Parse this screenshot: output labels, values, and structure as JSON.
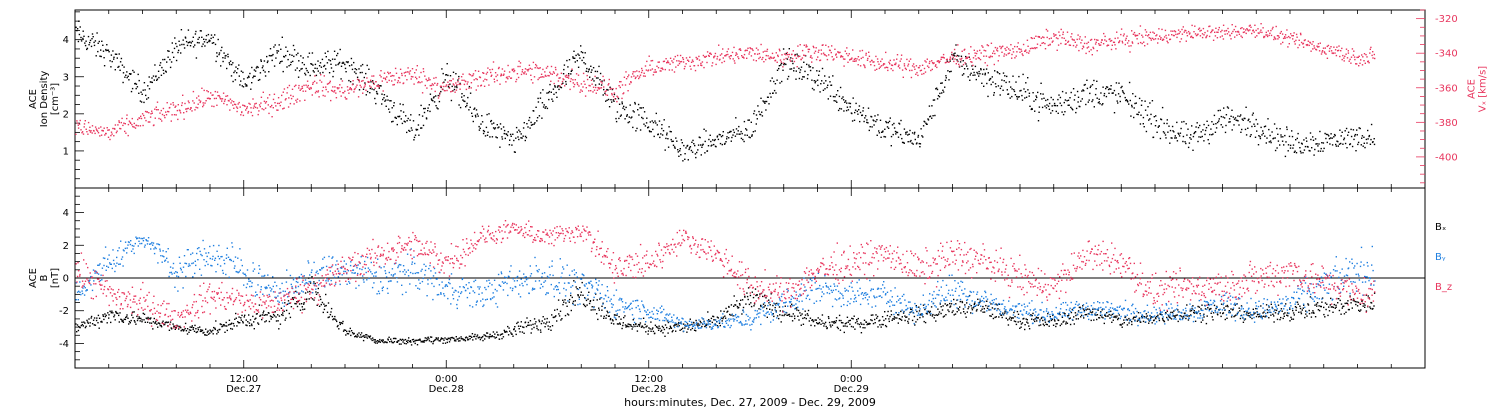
{
  "chart_data": [
    {
      "type": "scatter",
      "panel": "top",
      "ylabel": [
        "ACE",
        "Ion Density",
        "[cm⁻³]"
      ],
      "y2label": [
        "ACE",
        "Vₓ [km/s]"
      ],
      "ylim": [
        0,
        4.8
      ],
      "y2lim": [
        -418,
        -315
      ],
      "yticks": [
        1,
        2,
        3,
        4
      ],
      "y2ticks": [
        -320,
        -340,
        -360,
        -380,
        -400
      ],
      "series": [
        {
          "color": "#000000",
          "axis": "left",
          "x": [
            0,
            2,
            4,
            6,
            8,
            10,
            12,
            14,
            16,
            18,
            20,
            22,
            24,
            26,
            28,
            30,
            32,
            34,
            36,
            38,
            40,
            42,
            44,
            46,
            48,
            50,
            52,
            54,
            56,
            58,
            60,
            62,
            64,
            66,
            68,
            70,
            72,
            76
          ],
          "y": [
            4.2,
            3.6,
            2.6,
            3.8,
            4.1,
            2.8,
            3.7,
            3.3,
            3.4,
            2.6,
            1.5,
            3.0,
            1.8,
            1.2,
            2.4,
            3.6,
            2.2,
            1.8,
            1.0,
            1.3,
            1.6,
            3.4,
            3.0,
            2.2,
            1.6,
            1.3,
            3.5,
            3.0,
            2.6,
            2.2,
            2.6,
            2.5,
            1.8,
            1.3,
            1.9,
            1.7,
            1.2,
            1.4
          ],
          "spread": [
            0.35,
            0.3,
            0.3,
            0.35,
            0.35,
            0.3,
            0.35,
            0.35,
            0.35,
            0.35,
            0.35,
            0.4,
            0.4,
            0.3,
            0.4,
            0.35,
            0.4,
            0.4,
            0.3,
            0.3,
            0.35,
            0.35,
            0.4,
            0.4,
            0.35,
            0.3,
            0.35,
            0.4,
            0.4,
            0.4,
            0.4,
            0.4,
            0.4,
            0.35,
            0.4,
            0.35,
            0.35,
            0.3
          ]
        },
        {
          "color": "#e8365e",
          "axis": "right",
          "x": [
            0,
            2,
            4,
            6,
            8,
            10,
            12,
            14,
            16,
            18,
            20,
            22,
            24,
            26,
            28,
            30,
            32,
            34,
            36,
            38,
            40,
            42,
            44,
            46,
            48,
            50,
            52,
            54,
            56,
            58,
            60,
            62,
            64,
            66,
            68,
            70,
            72,
            76
          ],
          "y": [
            -382,
            -386,
            -378,
            -372,
            -365,
            -372,
            -368,
            -358,
            -362,
            -355,
            -352,
            -360,
            -354,
            -350,
            -352,
            -356,
            -362,
            -348,
            -345,
            -342,
            -340,
            -342,
            -338,
            -342,
            -346,
            -348,
            -342,
            -340,
            -338,
            -330,
            -335,
            -332,
            -330,
            -328,
            -328,
            -326,
            -332,
            -342
          ],
          "spread": [
            4,
            5,
            5,
            6,
            5,
            6,
            6,
            6,
            6,
            6,
            6,
            6,
            6,
            6,
            6,
            6,
            6,
            5,
            5,
            5,
            5,
            5,
            5,
            5,
            5,
            5,
            5,
            5,
            5,
            5,
            5,
            5,
            5,
            4,
            4,
            4,
            4,
            5
          ]
        }
      ]
    },
    {
      "type": "scatter",
      "panel": "bottom",
      "ylabel": [
        "ACE",
        "B",
        "[nT]"
      ],
      "ylim": [
        -5.5,
        5.5
      ],
      "yticks": [
        -4,
        -2,
        0,
        2,
        4
      ],
      "zero_line": true,
      "legend_position": "right",
      "series": [
        {
          "name": "Bₓ",
          "color": "#000000",
          "x": [
            0,
            2,
            4,
            6,
            8,
            10,
            12,
            14,
            16,
            18,
            20,
            22,
            24,
            26,
            28,
            30,
            32,
            34,
            36,
            38,
            40,
            42,
            44,
            46,
            48,
            50,
            52,
            54,
            56,
            58,
            60,
            62,
            64,
            66,
            68,
            70,
            72,
            76
          ],
          "y": [
            -3.0,
            -2.2,
            -2.5,
            -3.0,
            -3.2,
            -2.5,
            -2.4,
            -0.6,
            -3.2,
            -3.8,
            -3.8,
            -3.7,
            -3.6,
            -3.2,
            -2.5,
            -0.8,
            -2.6,
            -3.0,
            -3.0,
            -2.6,
            -1.2,
            -2.0,
            -2.7,
            -2.8,
            -2.4,
            -2.2,
            -1.8,
            -1.8,
            -2.6,
            -2.6,
            -2.0,
            -2.6,
            -2.4,
            -2.0,
            -2.0,
            -2.2,
            -2.0,
            -1.5
          ],
          "spread": [
            0.3,
            0.5,
            0.4,
            0.3,
            0.3,
            0.5,
            0.6,
            0.8,
            0.3,
            0.2,
            0.2,
            0.2,
            0.2,
            0.4,
            0.6,
            0.8,
            0.5,
            0.4,
            0.4,
            0.5,
            0.7,
            0.6,
            0.4,
            0.4,
            0.5,
            0.5,
            0.6,
            0.6,
            0.4,
            0.4,
            0.5,
            0.4,
            0.4,
            0.5,
            0.5,
            0.4,
            0.5,
            0.6
          ]
        },
        {
          "name": "Bᵧ",
          "color": "#1f7fe0",
          "x": [
            0,
            2,
            4,
            6,
            8,
            10,
            12,
            14,
            16,
            18,
            20,
            22,
            24,
            26,
            28,
            30,
            32,
            34,
            36,
            38,
            40,
            42,
            44,
            46,
            48,
            50,
            52,
            54,
            56,
            58,
            60,
            62,
            64,
            66,
            68,
            70,
            72,
            76
          ],
          "y": [
            -1.0,
            1.0,
            2.5,
            0.5,
            1.5,
            0.5,
            -1.0,
            0.2,
            0.5,
            0.0,
            0.5,
            -0.5,
            -1.0,
            -0.2,
            0.2,
            -0.5,
            -1.5,
            -2.0,
            -2.8,
            -2.7,
            -2.5,
            -1.5,
            -0.5,
            -1.0,
            -1.0,
            -2.0,
            -0.5,
            -1.5,
            -2.0,
            -2.2,
            -1.8,
            -2.0,
            -2.2,
            -2.0,
            -1.5,
            -2.0,
            -1.5,
            0.5
          ],
          "spread": [
            0.8,
            1.0,
            0.4,
            1.0,
            1.0,
            1.2,
            0.8,
            1.0,
            1.0,
            1.2,
            1.0,
            1.0,
            0.8,
            1.0,
            1.2,
            1.0,
            0.8,
            0.6,
            0.4,
            0.4,
            0.5,
            0.8,
            1.0,
            0.8,
            0.8,
            0.6,
            1.0,
            0.8,
            0.6,
            0.5,
            0.6,
            0.6,
            0.5,
            0.6,
            0.8,
            0.6,
            0.8,
            1.2
          ]
        },
        {
          "name": "B_z",
          "color": "#e8365e",
          "x": [
            0,
            2,
            4,
            6,
            8,
            10,
            12,
            14,
            16,
            18,
            20,
            22,
            24,
            26,
            28,
            30,
            32,
            34,
            36,
            38,
            40,
            42,
            44,
            46,
            48,
            50,
            52,
            54,
            56,
            58,
            60,
            62,
            64,
            66,
            68,
            70,
            72,
            76
          ],
          "y": [
            0.5,
            -1.0,
            -1.5,
            -2.5,
            -1.0,
            -1.5,
            -1.5,
            -0.5,
            0.5,
            1.5,
            2.0,
            1.0,
            2.5,
            3.0,
            2.5,
            3.0,
            0.5,
            1.0,
            2.5,
            1.5,
            -0.5,
            -1.0,
            0.5,
            1.0,
            1.5,
            0.5,
            1.5,
            1.0,
            0.0,
            -0.5,
            1.5,
            1.0,
            -1.0,
            -0.5,
            -0.5,
            0.0,
            0.5,
            -1.0
          ],
          "spread": [
            1.0,
            1.0,
            1.0,
            0.6,
            1.0,
            0.8,
            0.8,
            1.0,
            1.0,
            0.8,
            0.8,
            1.0,
            0.6,
            0.5,
            0.6,
            0.6,
            1.0,
            1.0,
            0.5,
            0.8,
            1.0,
            0.8,
            1.0,
            1.0,
            0.8,
            1.0,
            1.0,
            1.0,
            1.0,
            1.0,
            0.8,
            1.0,
            1.0,
            1.0,
            1.0,
            1.0,
            1.0,
            1.0
          ]
        }
      ]
    }
  ],
  "x_axis": {
    "xlabel": "hours:minutes, Dec. 27, 2009 - Dec. 29, 2009",
    "unit": "hours from 02:00 Dec. 27, 2009",
    "range": [
      0,
      80
    ],
    "data_end": 77,
    "major_ticks": [
      {
        "x": 10,
        "time": "12:00",
        "date": "Dec.27"
      },
      {
        "x": 22,
        "time": "0:00",
        "date": "Dec.28"
      },
      {
        "x": 34,
        "time": "12:00",
        "date": "Dec.28"
      },
      {
        "x": 46,
        "time": "0:00",
        "date": "Dec.29"
      }
    ],
    "minor_tick_step": 2
  },
  "colors": {
    "black": "#000000",
    "red": "#e8365e",
    "blue": "#1f7fe0"
  }
}
